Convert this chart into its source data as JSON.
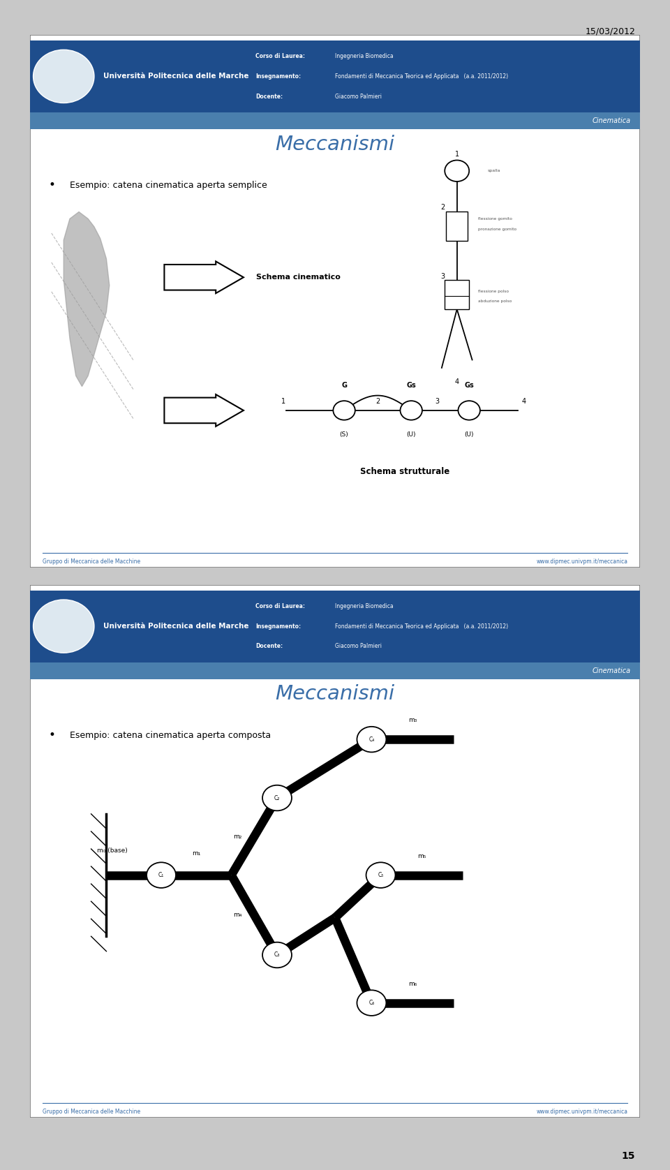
{
  "slide1": {
    "title": "Meccanismi",
    "subtitle": "Esempio: catena cinematica aperta semplice",
    "schema_label": "Schema cinematico",
    "schema_label2": "Schema strutturale",
    "header": {
      "university": "Università Politecnica delle Marche",
      "corso": "Corso di Laurea:",
      "corso_val": "Ingegneria Biomedica",
      "insegnamento": "Insegnamento:",
      "insegnamento_val": "Fondamenti di Meccanica Teorica ed Applicata   (a.a. 2011/2012)",
      "docente": "Docente:",
      "docente_val": "Giacomo Palmieri",
      "section": "Cinematica"
    },
    "footer_left": "Gruppo di Meccanica delle Macchine",
    "footer_right": "www.dipmec.univpm.it/meccanica"
  },
  "slide2": {
    "title": "Meccanismi",
    "subtitle": "Esempio: catena cinematica aperta composta",
    "header": {
      "university": "Università Politecnica delle Marche",
      "corso": "Corso di Laurea:",
      "corso_val": "Ingegneria Biomedica",
      "insegnamento": "Insegnamento:",
      "insegnamento_val": "Fondamenti di Meccanica Teorica ed Applicata   (a.a. 2011/2012)",
      "docente": "Docente:",
      "docente_val": "Giacomo Palmieri",
      "section": "Cinematica"
    },
    "footer_left": "Gruppo di Meccanica delle Macchine",
    "footer_right": "www.dipmec.univpm.it/meccanica"
  },
  "date": "15/03/2012",
  "page_number": "15",
  "title_color": "#3a6ea8",
  "header_bg": "#1e4d8c",
  "band_bg": "#4a7fad"
}
